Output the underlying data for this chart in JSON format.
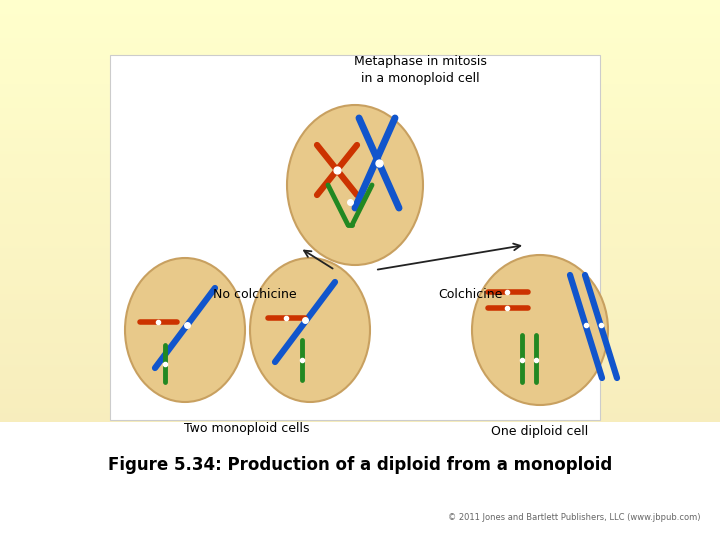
{
  "bg_outer": "#ffffcc",
  "bg_inner": "#f5e8b8",
  "white_bg": true,
  "title": "Figure 5.34: Production of a diploid from a monoploid",
  "title_fontsize": 12,
  "copyright": "© 2011 Jones and Bartlett Publishers, LLC (www.jbpub.com)",
  "cell_color": "#e8c98a",
  "cell_edge": "#c8a060",
  "label_top": "Metaphase in mitosis\nin a monoploid cell",
  "label_no_colchicine": "No colchicine",
  "label_colchicine": "Colchicine",
  "label_two_mono": "Two monoploid cells",
  "label_one_diploid": "One diploid cell",
  "arrow_color": "#222222",
  "red_color": "#cc3300",
  "blue_color": "#1155cc",
  "green_color": "#228822",
  "lw_chr": 3.5
}
